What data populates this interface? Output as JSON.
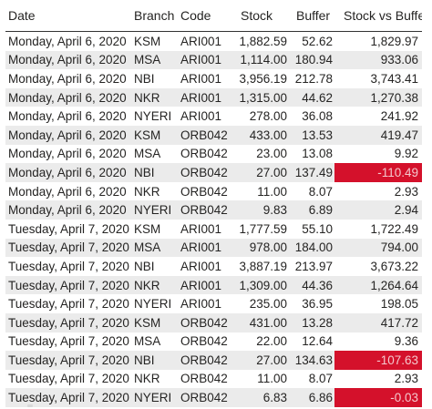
{
  "table": {
    "headers": {
      "date": "Date",
      "branch": "Branch",
      "code": "Code",
      "stock": "Stock",
      "buffer": "Buffer",
      "stock_vs_buffer": "Stock vs Buffer"
    },
    "colors": {
      "negative_highlight": "#d4112b",
      "alt_row": "#ebebeb"
    },
    "rows": [
      {
        "date": "Monday, April 6, 2020",
        "branch": "KSM",
        "code": "ARI001",
        "stock": "1,882.59",
        "buffer": "52.62",
        "svb": "1,829.97",
        "negative": false
      },
      {
        "date": "Monday, April 6, 2020",
        "branch": "MSA",
        "code": "ARI001",
        "stock": "1,114.00",
        "buffer": "180.94",
        "svb": "933.06",
        "negative": false
      },
      {
        "date": "Monday, April 6, 2020",
        "branch": "NBI",
        "code": "ARI001",
        "stock": "3,956.19",
        "buffer": "212.78",
        "svb": "3,743.41",
        "negative": false
      },
      {
        "date": "Monday, April 6, 2020",
        "branch": "NKR",
        "code": "ARI001",
        "stock": "1,315.00",
        "buffer": "44.62",
        "svb": "1,270.38",
        "negative": false
      },
      {
        "date": "Monday, April 6, 2020",
        "branch": "NYERI",
        "code": "ARI001",
        "stock": "278.00",
        "buffer": "36.08",
        "svb": "241.92",
        "negative": false
      },
      {
        "date": "Monday, April 6, 2020",
        "branch": "KSM",
        "code": "ORB042",
        "stock": "433.00",
        "buffer": "13.53",
        "svb": "419.47",
        "negative": false
      },
      {
        "date": "Monday, April 6, 2020",
        "branch": "MSA",
        "code": "ORB042",
        "stock": "23.00",
        "buffer": "13.08",
        "svb": "9.92",
        "negative": false
      },
      {
        "date": "Monday, April 6, 2020",
        "branch": "NBI",
        "code": "ORB042",
        "stock": "27.00",
        "buffer": "137.49",
        "svb": "-110.49",
        "negative": true
      },
      {
        "date": "Monday, April 6, 2020",
        "branch": "NKR",
        "code": "ORB042",
        "stock": "11.00",
        "buffer": "8.07",
        "svb": "2.93",
        "negative": false
      },
      {
        "date": "Monday, April 6, 2020",
        "branch": "NYERI",
        "code": "ORB042",
        "stock": "9.83",
        "buffer": "6.89",
        "svb": "2.94",
        "negative": false
      },
      {
        "date": "Tuesday, April 7, 2020",
        "branch": "KSM",
        "code": "ARI001",
        "stock": "1,777.59",
        "buffer": "55.10",
        "svb": "1,722.49",
        "negative": false
      },
      {
        "date": "Tuesday, April 7, 2020",
        "branch": "MSA",
        "code": "ARI001",
        "stock": "978.00",
        "buffer": "184.00",
        "svb": "794.00",
        "negative": false
      },
      {
        "date": "Tuesday, April 7, 2020",
        "branch": "NBI",
        "code": "ARI001",
        "stock": "3,887.19",
        "buffer": "213.97",
        "svb": "3,673.22",
        "negative": false
      },
      {
        "date": "Tuesday, April 7, 2020",
        "branch": "NKR",
        "code": "ARI001",
        "stock": "1,309.00",
        "buffer": "44.36",
        "svb": "1,264.64",
        "negative": false
      },
      {
        "date": "Tuesday, April 7, 2020",
        "branch": "NYERI",
        "code": "ARI001",
        "stock": "235.00",
        "buffer": "36.95",
        "svb": "198.05",
        "negative": false
      },
      {
        "date": "Tuesday, April 7, 2020",
        "branch": "KSM",
        "code": "ORB042",
        "stock": "431.00",
        "buffer": "13.28",
        "svb": "417.72",
        "negative": false
      },
      {
        "date": "Tuesday, April 7, 2020",
        "branch": "MSA",
        "code": "ORB042",
        "stock": "22.00",
        "buffer": "12.64",
        "svb": "9.36",
        "negative": false
      },
      {
        "date": "Tuesday, April 7, 2020",
        "branch": "NBI",
        "code": "ORB042",
        "stock": "27.00",
        "buffer": "134.63",
        "svb": "-107.63",
        "negative": true
      },
      {
        "date": "Tuesday, April 7, 2020",
        "branch": "NKR",
        "code": "ORB042",
        "stock": "11.00",
        "buffer": "8.07",
        "svb": "2.93",
        "negative": false
      },
      {
        "date": "Tuesday, April 7, 2020",
        "branch": "NYERI",
        "code": "ORB042",
        "stock": "6.83",
        "buffer": "6.86",
        "svb": "-0.03",
        "negative": true
      }
    ]
  }
}
